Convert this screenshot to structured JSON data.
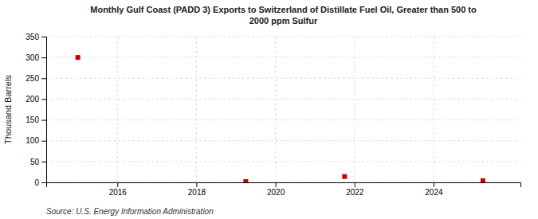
{
  "chart_data": {
    "type": "scatter",
    "title": "Monthly Gulf Coast (PADD 3) Exports to Switzerland of Distillate Fuel Oil, Greater than 500 to\n2000 ppm Sulfur",
    "ylabel": "Thousand Barrels",
    "source": "Source: U.S. Energy Information Administration",
    "x": [
      2015.0,
      2019.25,
      2021.75,
      2025.25
    ],
    "values": [
      300,
      2,
      14,
      4
    ],
    "color": "#cc0000",
    "marker": "square",
    "xlim": [
      2014.2,
      2026.2
    ],
    "ylim": [
      0,
      350
    ],
    "xticks": [
      2016,
      2018,
      2020,
      2022,
      2024
    ],
    "yticks": [
      0,
      50,
      100,
      150,
      200,
      250,
      300,
      350
    ],
    "grid": true
  }
}
